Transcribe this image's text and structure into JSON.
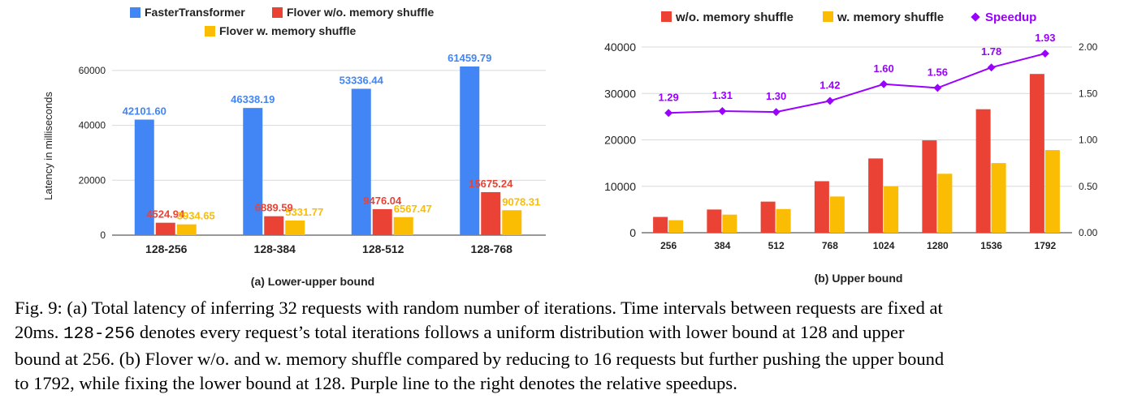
{
  "chart_data": [
    {
      "type": "bar",
      "title": "(a) Lower-upper bound",
      "ylabel": "Latency in milliseconds",
      "xlabel": "",
      "ylim": [
        0,
        65000
      ],
      "yticks": [
        0,
        20000,
        40000,
        60000
      ],
      "grid": true,
      "legend": "top",
      "categories": [
        "128-256",
        "128-384",
        "128-512",
        "128-768"
      ],
      "series": [
        {
          "name": "FasterTransformer",
          "color": "#4285f4",
          "values": [
            42101.6,
            46338.19,
            53336.44,
            61459.79
          ],
          "labels": [
            "42101.60",
            "46338.19",
            "53336.44",
            "61459.79"
          ]
        },
        {
          "name": "Flover w/o. memory shuffle",
          "color": "#ea4335",
          "values": [
            4524.94,
            6889.59,
            9476.04,
            15675.24
          ],
          "labels": [
            "4524.94",
            "6889.59",
            "9476.04",
            "15675.24"
          ]
        },
        {
          "name": "Flover w. memory shuffle",
          "color": "#fbbc04",
          "values": [
            3934.65,
            5331.77,
            6567.47,
            9078.31
          ],
          "labels": [
            "3934.65",
            "5331.77",
            "6567.47",
            "9078.31"
          ]
        }
      ]
    },
    {
      "type": "bar",
      "title": "(b) Upper bound",
      "xlabel": "",
      "ylabel": "",
      "ylim": [
        0,
        40000
      ],
      "yticks": [
        0,
        10000,
        20000,
        30000,
        40000
      ],
      "y2lim": [
        0,
        2.0
      ],
      "y2ticks": [
        "0.00",
        "0.50",
        "1.00",
        "1.50",
        "2.00"
      ],
      "grid": true,
      "legend": "top",
      "categories": [
        "256",
        "384",
        "512",
        "768",
        "1024",
        "1280",
        "1536",
        "1792"
      ],
      "series": [
        {
          "name": "w/o. memory shuffle",
          "color": "#ea4335",
          "values": [
            3400,
            5000,
            6700,
            11100,
            16000,
            19900,
            26600,
            34200
          ]
        },
        {
          "name": "w. memory shuffle",
          "color": "#fbbc04",
          "values": [
            2700,
            3900,
            5100,
            7800,
            10000,
            12700,
            15000,
            17800
          ]
        },
        {
          "name": "Speedup",
          "type": "line",
          "axis": "right",
          "color": "#9900ff",
          "values": [
            1.29,
            1.31,
            1.3,
            1.42,
            1.6,
            1.56,
            1.78,
            1.93
          ],
          "labels": [
            "1.29",
            "1.31",
            "1.30",
            "1.42",
            "1.60",
            "1.56",
            "1.78",
            "1.93"
          ]
        }
      ]
    }
  ],
  "caption": {
    "line1": "Fig. 9: (a) Total latency of inferring 32 requests with random number of iterations. Time intervals between requests are fixed at",
    "line2_start": "20ms.",
    "line2_code": "128-256",
    "line2_end": "denotes every request’s total iterations follows a uniform distribution with lower bound at 128 and upper",
    "line3": "bound at 256. (b) Flover w/o. and w. memory shuffle compared by reducing to 16 requests but further pushing the upper bound",
    "line4": "to 1792, while fixing the lower bound at 128. Purple line to the right denotes the relative speedups."
  }
}
